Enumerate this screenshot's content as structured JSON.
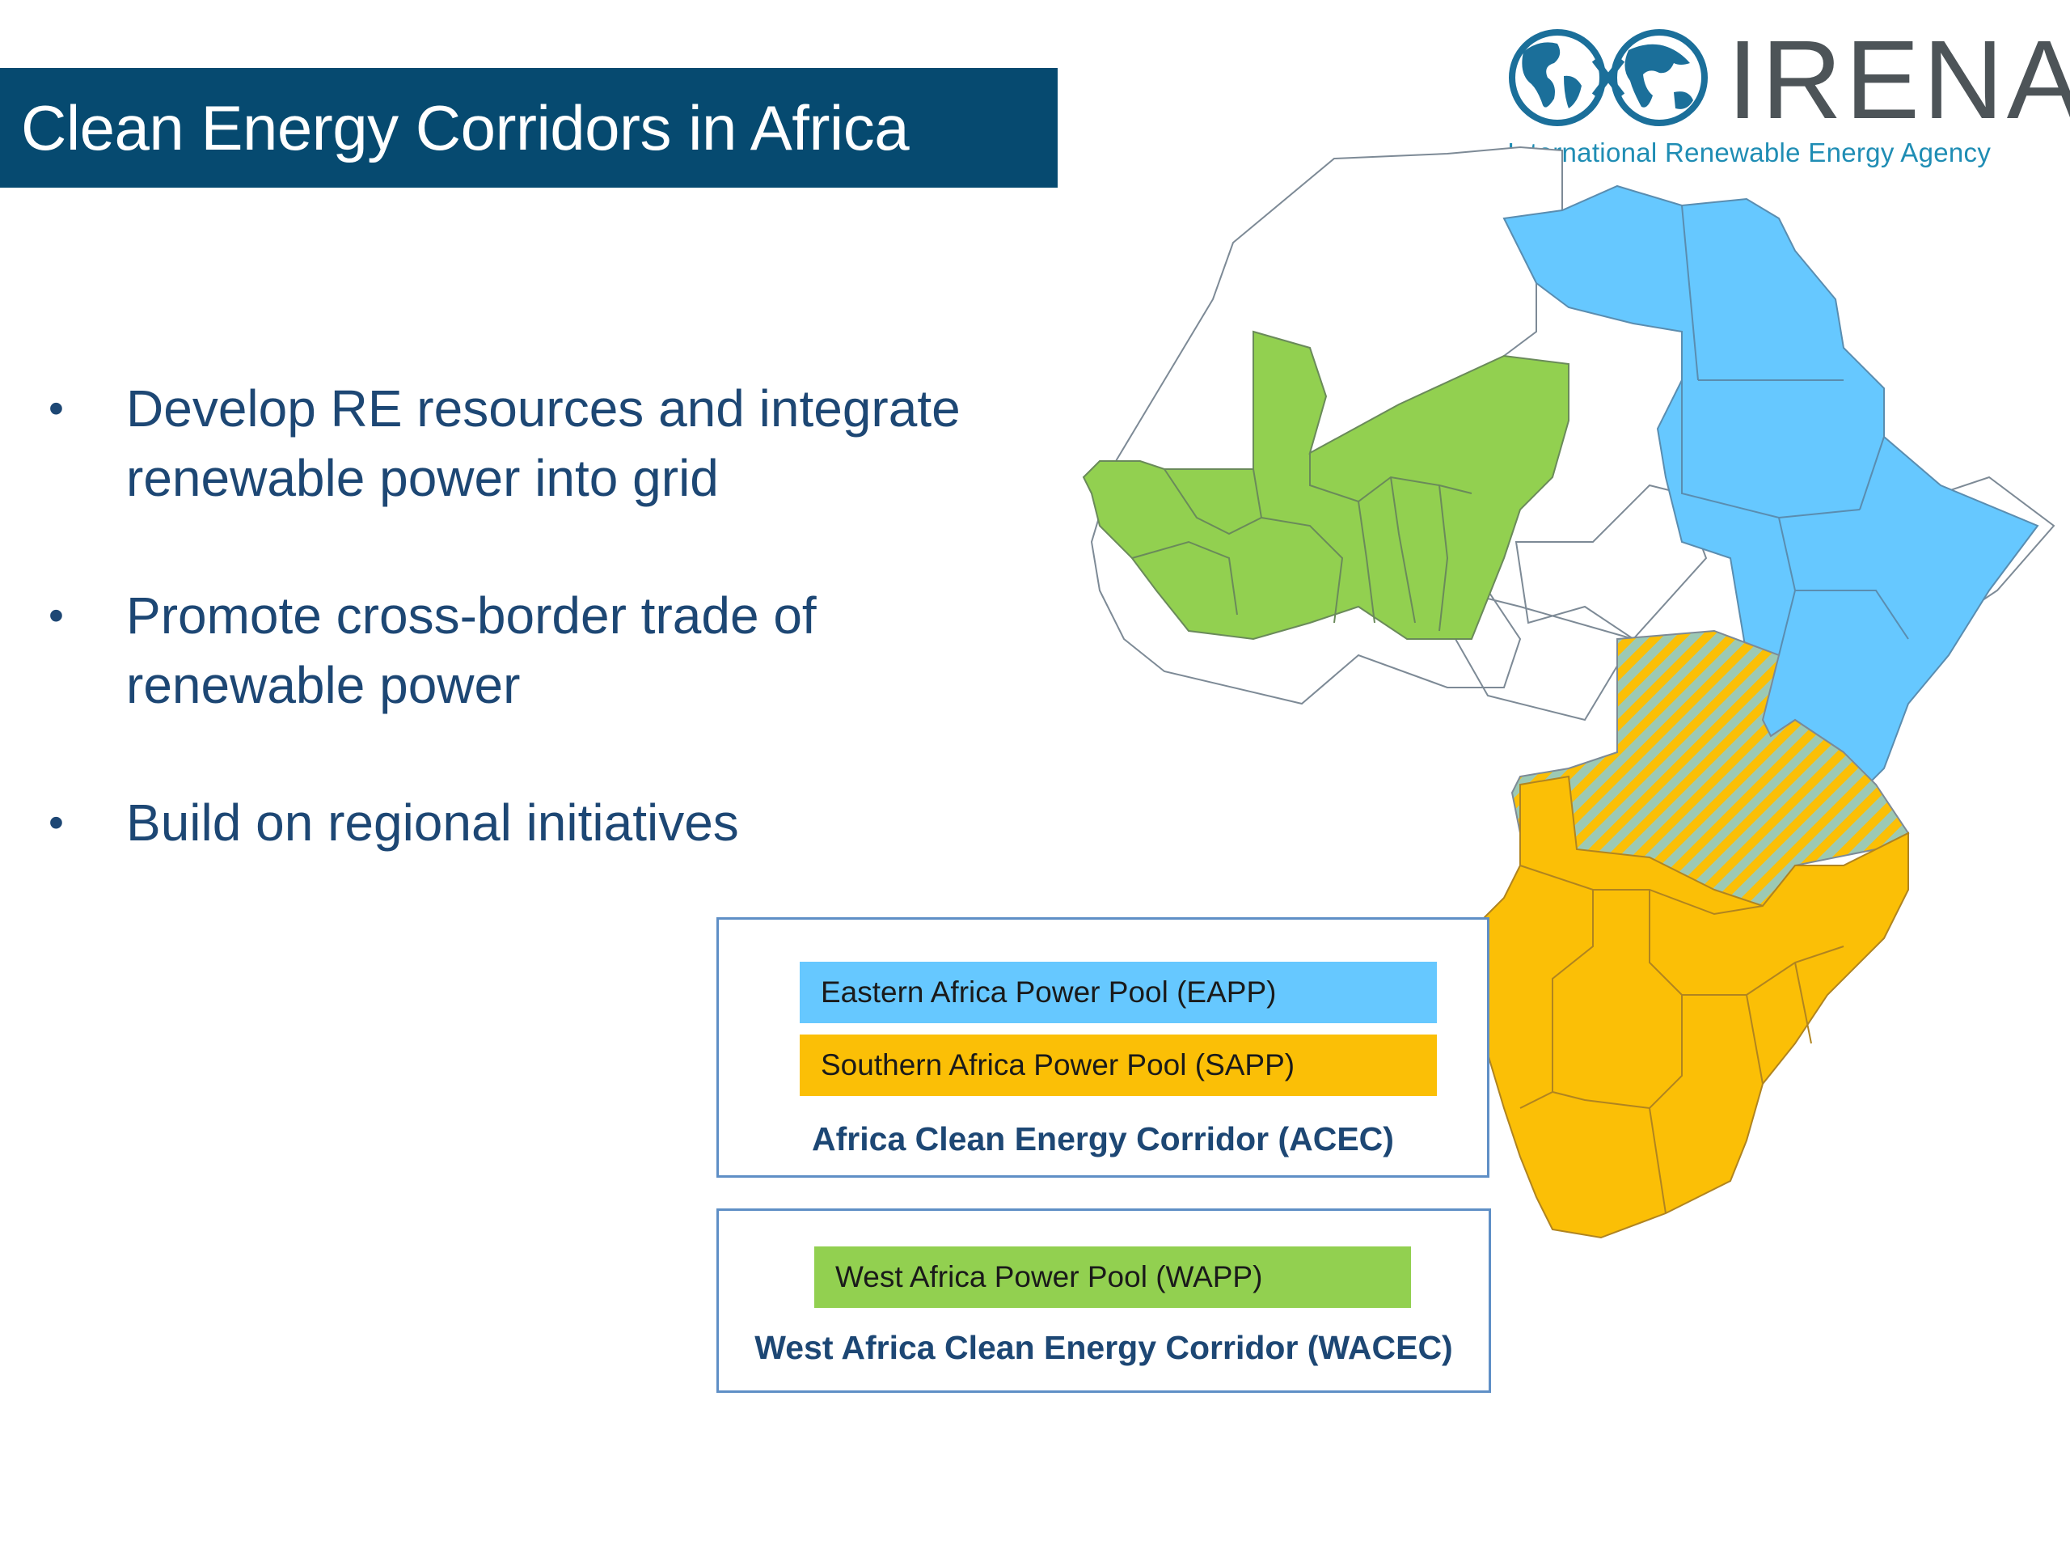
{
  "header": {
    "title": "Clean Energy Corridors in Africa"
  },
  "logo": {
    "wordmark": "IRENA",
    "tagline": "International Renewable Energy Agency"
  },
  "bullets": [
    {
      "text": "Develop RE resources and integrate renewable power into grid"
    },
    {
      "text": "Promote cross-border trade of renewable power"
    },
    {
      "text": "Build on regional initiatives"
    }
  ],
  "map": {
    "colors": {
      "eapp": "#66c8ff",
      "sapp": "#fbbf06",
      "wapp": "#92d050",
      "overlap_stripe": "#fbbf06",
      "overlap_base": "#9cc9b4",
      "unassigned": "#ffffff",
      "border": "#7d8a96"
    },
    "regions": [
      {
        "name": "EAPP",
        "fill": "eapp"
      },
      {
        "name": "SAPP",
        "fill": "sapp"
      },
      {
        "name": "WAPP",
        "fill": "wapp"
      },
      {
        "name": "EAPP + SAPP overlap",
        "fill": "hatched"
      }
    ]
  },
  "legend": {
    "acec": {
      "items": [
        {
          "label": "Eastern Africa Power Pool (EAPP)",
          "color": "#66c8ff"
        },
        {
          "label": "Southern Africa Power Pool (SAPP)",
          "color": "#fbbf06"
        }
      ],
      "corridor": "Africa Clean Energy Corridor (ACEC)"
    },
    "wacec": {
      "items": [
        {
          "label": "West Africa Power Pool (WAPP)",
          "color": "#92d050"
        }
      ],
      "corridor": "West Africa Clean Energy Corridor (WACEC)"
    }
  }
}
